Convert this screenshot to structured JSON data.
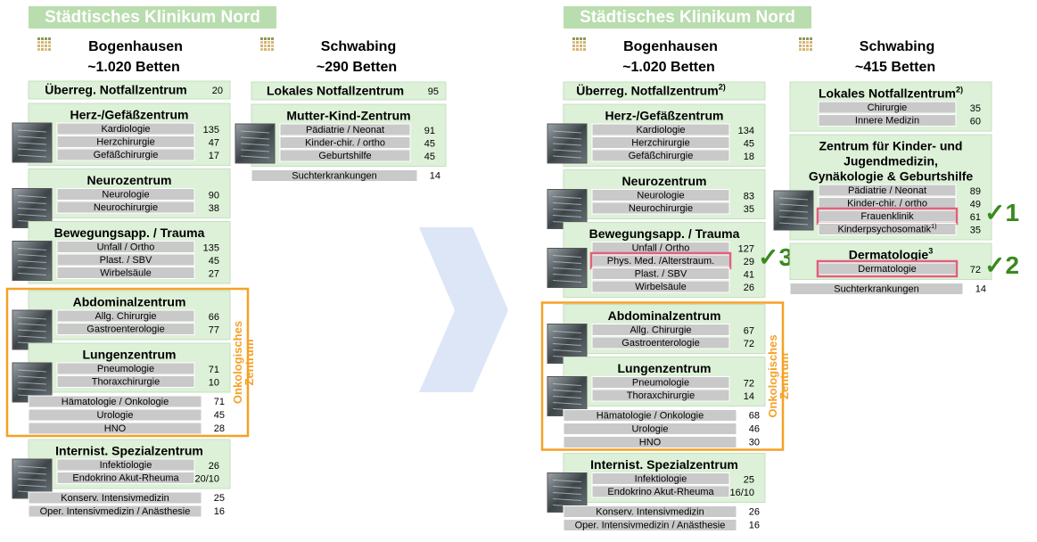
{
  "panels": [
    {
      "title": "Städtisches Klinikum Nord",
      "columns": [
        {
          "site": "Bogenhausen",
          "beds": "~1.020 Betten",
          "blocks": [
            {
              "kind": "header-row",
              "label": "Überreg. Notfallzentrum",
              "value": "20"
            },
            {
              "kind": "group",
              "image": true,
              "title": [
                "Herz-/Gefäßzentrum"
              ],
              "items": [
                {
                  "label": "Kardiologie",
                  "value": "135"
                },
                {
                  "label": "Herzchirurgie",
                  "value": "47"
                },
                {
                  "label": "Gefäßchirurgie",
                  "value": "17"
                }
              ]
            },
            {
              "kind": "group",
              "image": true,
              "title": [
                "Neurozentrum"
              ],
              "items": [
                {
                  "label": "Neurologie",
                  "value": "90"
                },
                {
                  "label": "Neurochirurgie",
                  "value": "38"
                }
              ]
            },
            {
              "kind": "group",
              "image": true,
              "title": [
                "Bewegungsapp. / Trauma"
              ],
              "items": [
                {
                  "label": "Unfall / Ortho",
                  "value": "135"
                },
                {
                  "label": "Plast. / SBV",
                  "value": "45"
                },
                {
                  "label": "Wirbelsäule",
                  "value": "27"
                }
              ]
            },
            {
              "kind": "frame",
              "label": [
                "Onkologisches",
                "Zentrum"
              ],
              "blocks": [
                {
                  "kind": "group",
                  "image": true,
                  "title": [
                    "Abdominalzentrum"
                  ],
                  "items": [
                    {
                      "label": "Allg. Chirurgie",
                      "value": "66"
                    },
                    {
                      "label": "Gastroenterologie",
                      "value": "77"
                    }
                  ]
                },
                {
                  "kind": "group",
                  "image": true,
                  "title": [
                    "Lungenzentrum"
                  ],
                  "items": [
                    {
                      "label": "Pneumologie",
                      "value": "71"
                    },
                    {
                      "label": "Thoraxchirurgie",
                      "value": "10"
                    }
                  ]
                },
                {
                  "kind": "item",
                  "label": "Hämatologie  / Onkologie",
                  "value": "71"
                },
                {
                  "kind": "item",
                  "label": "Urologie",
                  "value": "45"
                },
                {
                  "kind": "item",
                  "label": "HNO",
                  "value": "28"
                }
              ]
            },
            {
              "kind": "group",
              "image": true,
              "title": [
                "Internist. Spezialzentrum"
              ],
              "items": [
                {
                  "label": "Infektiologie",
                  "value": "26"
                },
                {
                  "label": "Endokrino  Akut-Rheuma",
                  "value": "20/10"
                }
              ]
            },
            {
              "kind": "item",
              "label": "Konserv. Intensivmedizin",
              "value": "25"
            },
            {
              "kind": "item",
              "label": "Oper. Intensivmedizin  / Anästhesie",
              "value": "16"
            }
          ]
        },
        {
          "site": "Schwabing",
          "beds": "~290 Betten",
          "blocks": [
            {
              "kind": "header-row",
              "label": "Lokales Notfallzentrum",
              "value": "95"
            },
            {
              "kind": "group",
              "image": true,
              "title": [
                "Mutter-Kind-Zentrum"
              ],
              "items": [
                {
                  "label": "Pädiatrie / Neonat",
                  "value": "91"
                },
                {
                  "label": "Kinder-chir. / ortho",
                  "value": "45"
                },
                {
                  "label": "Geburtshilfe",
                  "value": "45"
                }
              ]
            },
            {
              "kind": "item",
              "label": "Suchterkrankungen",
              "value": "14"
            }
          ]
        }
      ]
    },
    {
      "title": "Städtisches Klinikum Nord",
      "columns": [
        {
          "site": "Bogenhausen",
          "beds": "~1.020 Betten",
          "blocks": [
            {
              "kind": "header-row",
              "label": "Überreg. Notfallzentrum",
              "sup": "2)"
            },
            {
              "kind": "group",
              "image": true,
              "title": [
                "Herz-/Gefäßzentrum"
              ],
              "items": [
                {
                  "label": "Kardiologie",
                  "value": "134"
                },
                {
                  "label": "Herzchirurgie",
                  "value": "45"
                },
                {
                  "label": "Gefäßchirurgie",
                  "value": "18"
                }
              ]
            },
            {
              "kind": "group",
              "image": true,
              "title": [
                "Neurozentrum"
              ],
              "items": [
                {
                  "label": "Neurologie",
                  "value": "83"
                },
                {
                  "label": "Neurochirurgie",
                  "value": "35"
                }
              ]
            },
            {
              "kind": "group",
              "image": true,
              "title": [
                "Bewegungsapp. / Trauma"
              ],
              "items": [
                {
                  "label": "Unfall / Ortho",
                  "value": "127"
                },
                {
                  "label": "Phys. Med. /Alterstraum.",
                  "value": "29",
                  "highlight": true,
                  "check": "✓3"
                },
                {
                  "label": "Plast.  / SBV",
                  "value": "41"
                },
                {
                  "label": "Wirbelsäule",
                  "value": "26"
                }
              ]
            },
            {
              "kind": "frame",
              "label": [
                "Onkologisches",
                "Zentrum"
              ],
              "blocks": [
                {
                  "kind": "group",
                  "image": true,
                  "title": [
                    "Abdominalzentrum"
                  ],
                  "items": [
                    {
                      "label": "Allg. Chirurgie",
                      "value": "67"
                    },
                    {
                      "label": "Gastroenterologie",
                      "value": "72"
                    }
                  ]
                },
                {
                  "kind": "group",
                  "image": true,
                  "title": [
                    "Lungenzentrum"
                  ],
                  "items": [
                    {
                      "label": "Pneumologie",
                      "value": "72"
                    },
                    {
                      "label": "Thoraxchirurgie",
                      "value": "14"
                    }
                  ]
                },
                {
                  "kind": "item",
                  "label": "Hämatologie  / Onkologie",
                  "value": "68"
                },
                {
                  "kind": "item",
                  "label": "Urologie",
                  "value": "46"
                },
                {
                  "kind": "item",
                  "label": "HNO",
                  "value": "30"
                }
              ]
            },
            {
              "kind": "group",
              "image": true,
              "title": [
                "Internist. Spezialzentrum"
              ],
              "items": [
                {
                  "label": "Infektiologie",
                  "value": "25"
                },
                {
                  "label": "Endokrino  Akut-Rheuma",
                  "value": "16/10"
                }
              ]
            },
            {
              "kind": "item",
              "label": "Konserv.  Intensivmedizin",
              "value": "26"
            },
            {
              "kind": "item",
              "label": "Oper.  Intensivmedizin  / Anästhesie",
              "value": "16"
            }
          ]
        },
        {
          "site": "Schwabing",
          "beds": "~415 Betten",
          "blocks": [
            {
              "kind": "group",
              "title": [
                "Lokales Notfallzentrum"
              ],
              "title_sup": "2)",
              "items": [
                {
                  "label": "Chirurgie",
                  "value": "35"
                },
                {
                  "label": "Innere Medizin",
                  "value": "60"
                }
              ]
            },
            {
              "kind": "group",
              "image": true,
              "title": [
                "Zentrum für Kinder- und",
                "Jugendmedizin,",
                "Gynäkologie & Geburtshilfe"
              ],
              "items": [
                {
                  "label": "Pädiatrie / Neonat",
                  "value": "89"
                },
                {
                  "label": "Kinder-chir. / ortho",
                  "value": "49"
                },
                {
                  "label": "Frauenklinik",
                  "value": "61",
                  "highlight": true,
                  "check": "✓1"
                },
                {
                  "label": "Kinderpsychosomatik",
                  "sup": "1)",
                  "value": "35"
                }
              ]
            },
            {
              "kind": "group",
              "title": [
                "Dermatologie"
              ],
              "title_sup": "3",
              "items": [
                {
                  "label": "Dermatologie",
                  "value": "72",
                  "highlight": true,
                  "check": "✓2"
                }
              ]
            },
            {
              "kind": "item",
              "label": "Suchterkrankungen",
              "value": "14"
            }
          ]
        }
      ]
    }
  ]
}
